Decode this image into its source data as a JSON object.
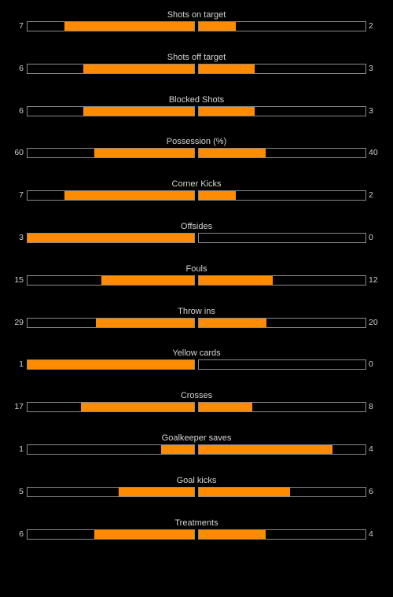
{
  "colors": {
    "background": "#000000",
    "bar_fill": "#ff8c00",
    "bar_border": "#8a8a8a",
    "text": "#d4d4d4"
  },
  "stats": [
    {
      "label": "Shots on target",
      "home": "7",
      "away": "2",
      "home_share": 0.778,
      "away_share": 0.222
    },
    {
      "label": "Shots off target",
      "home": "6",
      "away": "3",
      "home_share": 0.667,
      "away_share": 0.333
    },
    {
      "label": "Blocked Shots",
      "home": "6",
      "away": "3",
      "home_share": 0.667,
      "away_share": 0.333
    },
    {
      "label": "Possession (%)",
      "home": "60",
      "away": "40",
      "home_share": 0.6,
      "away_share": 0.4
    },
    {
      "label": "Corner Kicks",
      "home": "7",
      "away": "2",
      "home_share": 0.778,
      "away_share": 0.222
    },
    {
      "label": "Offsides",
      "home": "3",
      "away": "0",
      "home_share": 1.0,
      "away_share": 0.0
    },
    {
      "label": "Fouls",
      "home": "15",
      "away": "12",
      "home_share": 0.556,
      "away_share": 0.444
    },
    {
      "label": "Throw ins",
      "home": "29",
      "away": "20",
      "home_share": 0.592,
      "away_share": 0.408
    },
    {
      "label": "Yellow cards",
      "home": "1",
      "away": "0",
      "home_share": 1.0,
      "away_share": 0.0
    },
    {
      "label": "Crosses",
      "home": "17",
      "away": "8",
      "home_share": 0.68,
      "away_share": 0.32
    },
    {
      "label": "Goalkeeper saves",
      "home": "1",
      "away": "4",
      "home_share": 0.2,
      "away_share": 0.8
    },
    {
      "label": "Goal kicks",
      "home": "5",
      "away": "6",
      "home_share": 0.455,
      "away_share": 0.545
    },
    {
      "label": "Treatments",
      "home": "6",
      "away": "4",
      "home_share": 0.6,
      "away_share": 0.4
    }
  ]
}
